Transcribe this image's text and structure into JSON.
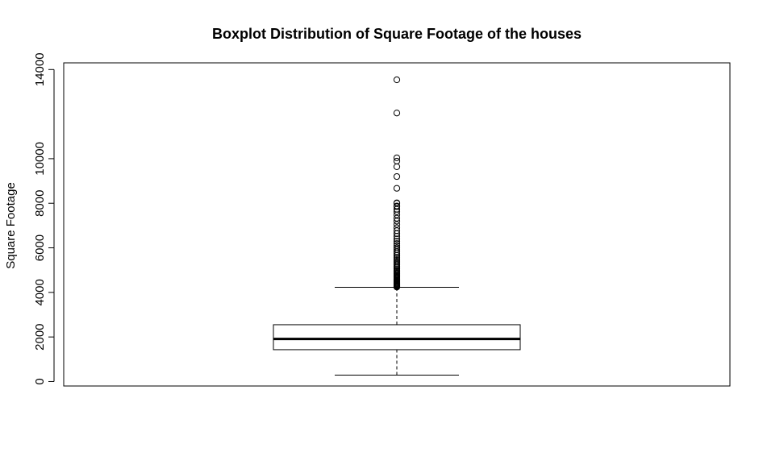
{
  "chart_data": {
    "type": "boxplot",
    "title": "Boxplot Distribution of Square Footage of the houses",
    "xlabel": "",
    "ylabel": "Square Footage",
    "ylim": [
      -200,
      14300
    ],
    "yticks": [
      0,
      2000,
      4000,
      6000,
      8000,
      10000,
      14000
    ],
    "ytick_labels": [
      "0",
      "2000",
      "4000",
      "6000",
      "8000",
      "10000",
      "14000"
    ],
    "grid": false,
    "legend": "none",
    "colors": {
      "axis": "#000000",
      "box_fill": "#ffffff",
      "median": "#000000"
    },
    "box": {
      "whisker_low": 290,
      "q1": 1430,
      "median": 1910,
      "q3": 2550,
      "whisker_high": 4230
    },
    "outliers": [
      4240,
      4260,
      4280,
      4300,
      4330,
      4360,
      4390,
      4420,
      4450,
      4490,
      4520,
      4560,
      4600,
      4640,
      4680,
      4720,
      4760,
      4800,
      4850,
      4900,
      4950,
      5000,
      5060,
      5120,
      5180,
      5240,
      5300,
      5370,
      5440,
      5510,
      5580,
      5660,
      5740,
      5820,
      5910,
      6000,
      6090,
      6190,
      6290,
      6400,
      6520,
      6640,
      6770,
      6900,
      7050,
      7200,
      7330,
      7480,
      7620,
      7730,
      7850,
      7880,
      8000,
      8020,
      8670,
      9200,
      9640,
      9890,
      10040,
      12050,
      13540
    ]
  }
}
